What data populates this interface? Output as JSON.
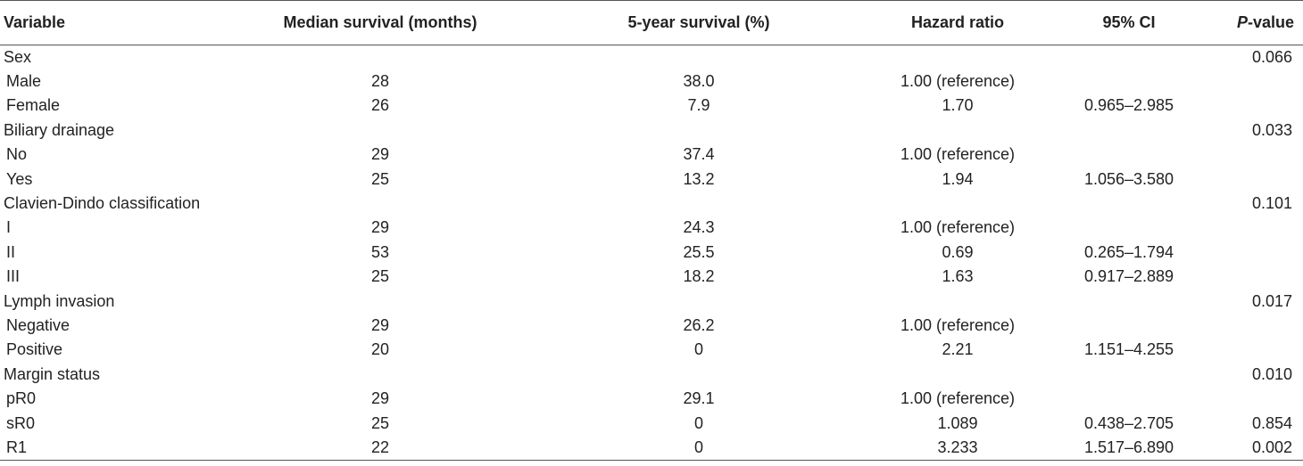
{
  "table": {
    "headers": {
      "variable": "Variable",
      "median": "Median survival (months)",
      "five_year": "5-year survival (%)",
      "hr": "Hazard ratio",
      "ci": "95% CI",
      "p_italic": "P",
      "p_rest": "-value"
    },
    "rows": [
      {
        "variable": "Sex",
        "median": "",
        "five_year": "",
        "hr": "",
        "ci": "",
        "p": "0.066"
      },
      {
        "variable": "Male",
        "median": "28",
        "five_year": "38.0",
        "hr": "1.00 (reference)",
        "ci": "",
        "p": ""
      },
      {
        "variable": "Female",
        "median": "26",
        "five_year": "7.9",
        "hr": "1.70",
        "ci": "0.965–2.985",
        "p": ""
      },
      {
        "variable": "Biliary drainage",
        "median": "",
        "five_year": "",
        "hr": "",
        "ci": "",
        "p": "0.033"
      },
      {
        "variable": "No",
        "median": "29",
        "five_year": "37.4",
        "hr": "1.00 (reference)",
        "ci": "",
        "p": ""
      },
      {
        "variable": "Yes",
        "median": "25",
        "five_year": "13.2",
        "hr": "1.94",
        "ci": "1.056–3.580",
        "p": ""
      },
      {
        "variable": "Clavien-Dindo classification",
        "median": "",
        "five_year": "",
        "hr": "",
        "ci": "",
        "p": "0.101"
      },
      {
        "variable": "I",
        "median": "29",
        "five_year": "24.3",
        "hr": "1.00 (reference)",
        "ci": "",
        "p": ""
      },
      {
        "variable": "II",
        "median": "53",
        "five_year": "25.5",
        "hr": "0.69",
        "ci": "0.265–1.794",
        "p": ""
      },
      {
        "variable": "III",
        "median": "25",
        "five_year": "18.2",
        "hr": "1.63",
        "ci": "0.917–2.889",
        "p": ""
      },
      {
        "variable": "Lymph invasion",
        "median": "",
        "five_year": "",
        "hr": "",
        "ci": "",
        "p": "0.017"
      },
      {
        "variable": "Negative",
        "median": "29",
        "five_year": "26.2",
        "hr": "1.00 (reference)",
        "ci": "",
        "p": ""
      },
      {
        "variable": "Positive",
        "median": "20",
        "five_year": "0",
        "hr": "2.21",
        "ci": "1.151–4.255",
        "p": ""
      },
      {
        "variable": "Margin status",
        "median": "",
        "five_year": "",
        "hr": "",
        "ci": "",
        "p": "0.010"
      },
      {
        "variable": "pR0",
        "median": "29",
        "five_year": "29.1",
        "hr": "1.00 (reference)",
        "ci": "",
        "p": ""
      },
      {
        "variable": "sR0",
        "median": "25",
        "five_year": "0",
        "hr": "1.089",
        "ci": "0.438–2.705",
        "p": "0.854"
      },
      {
        "variable": "R1",
        "median": "22",
        "five_year": "0",
        "hr": "3.233",
        "ci": "1.517–6.890",
        "p": "0.002"
      }
    ]
  }
}
